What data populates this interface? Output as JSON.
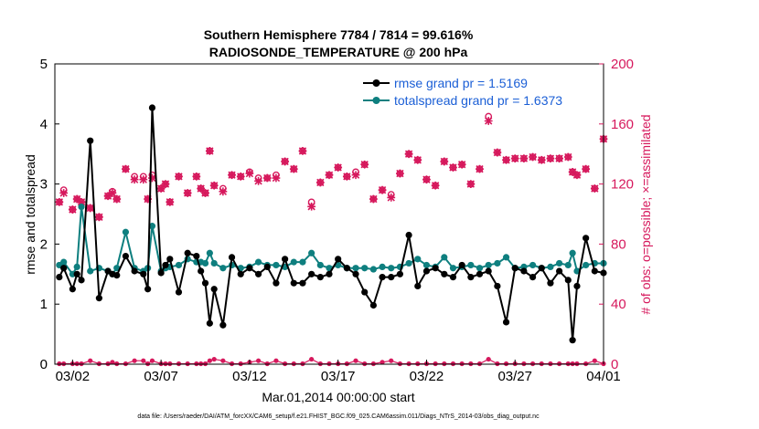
{
  "chart_data": {
    "type": "line",
    "title_line1": "Southern Hemisphere 7784 / 7814 = 99.616%",
    "title_line2": "RADIOSONDE_TEMPERATURE @ 200 hPa",
    "xlabel": "Mar.01,2014 00:00:00 start",
    "ylabel_left": "rmse and totalspread",
    "ylabel_right": "# of obs: o=possible; ×=assimilated",
    "ylim_left": [
      0,
      5
    ],
    "ylim_right": [
      0,
      200
    ],
    "xlim": [
      0,
      31
    ],
    "yticks_left": [
      "0",
      "1",
      "2",
      "3",
      "4",
      "5"
    ],
    "yticks_right": [
      "0",
      "40",
      "80",
      "120",
      "160",
      "200"
    ],
    "xticks": [
      {
        "value": 1,
        "label": "03/02"
      },
      {
        "value": 6,
        "label": "03/07"
      },
      {
        "value": 11,
        "label": "03/12"
      },
      {
        "value": 16,
        "label": "03/17"
      },
      {
        "value": 21,
        "label": "03/22"
      },
      {
        "value": 26,
        "label": "03/27"
      },
      {
        "value": 31,
        "label": "04/01"
      }
    ],
    "legend": {
      "placement": "top-right",
      "entries": [
        "rmse grand pr = 1.5169",
        "totalspread grand pr = 1.6373"
      ]
    },
    "footnote": "data file: /Users/raeder/DAI/ATM_forcXX/CAM6_setup/f.e21.FHIST_BGC.f09_025.CAM6assim.011/Diags_NTrS_2014-03/obs_diag_output.nc",
    "colors": {
      "rmse": "#000000",
      "spread": "#0e7f7f",
      "obs": "#d6185c"
    },
    "series": [
      {
        "name": "rmse",
        "x": [
          0.25,
          0.5,
          1,
          1.25,
          1.5,
          2,
          2.5,
          3,
          3.25,
          3.5,
          4,
          4.5,
          5,
          5.25,
          5.5,
          6,
          6.25,
          6.5,
          7,
          7.5,
          8,
          8.25,
          8.5,
          8.75,
          9,
          9.5,
          10,
          10.5,
          11,
          11.5,
          12,
          12.5,
          13,
          13.5,
          14,
          14.5,
          15,
          15.5,
          16,
          16.5,
          17,
          17.5,
          18,
          18.5,
          19,
          19.5,
          20,
          20.5,
          21,
          21.5,
          22,
          22.5,
          23,
          23.5,
          24,
          24.5,
          25,
          25.5,
          26,
          26.5,
          27,
          27.5,
          28,
          28.5,
          29,
          29.25,
          29.5,
          30,
          30.5,
          31
        ],
        "values": [
          1.45,
          1.6,
          1.25,
          1.5,
          1.4,
          3.72,
          1.1,
          1.55,
          1.5,
          1.48,
          1.8,
          1.55,
          1.5,
          1.25,
          4.27,
          1.52,
          1.65,
          1.75,
          1.2,
          1.85,
          1.8,
          1.55,
          1.35,
          0.68,
          1.25,
          0.65,
          1.78,
          1.5,
          1.6,
          1.5,
          1.62,
          1.35,
          1.75,
          1.35,
          1.35,
          1.5,
          1.45,
          1.5,
          1.75,
          1.6,
          1.5,
          1.2,
          0.98,
          1.45,
          1.45,
          1.5,
          2.15,
          1.3,
          1.55,
          1.6,
          1.5,
          1.45,
          1.65,
          1.45,
          1.5,
          1.55,
          1.3,
          0.7,
          1.6,
          1.55,
          1.45,
          1.6,
          1.35,
          1.55,
          1.4,
          0.4,
          1.3,
          2.1,
          1.55,
          1.52
        ]
      },
      {
        "name": "totalspread",
        "x": [
          0.25,
          0.5,
          1,
          1.25,
          1.5,
          2,
          2.5,
          3,
          3.25,
          3.5,
          4,
          4.5,
          5,
          5.25,
          5.5,
          6,
          6.25,
          6.5,
          7,
          7.5,
          8,
          8.25,
          8.5,
          8.75,
          9,
          9.5,
          10,
          10.5,
          11,
          11.5,
          12,
          12.5,
          13,
          13.5,
          14,
          14.5,
          15,
          15.5,
          16,
          16.5,
          17,
          17.5,
          18,
          18.5,
          19,
          19.5,
          20,
          20.5,
          21,
          21.5,
          22,
          22.5,
          23,
          23.5,
          24,
          24.5,
          25,
          25.5,
          26,
          26.5,
          27,
          27.5,
          28,
          28.5,
          29,
          29.25,
          29.5,
          30,
          30.5,
          31
        ],
        "values": [
          1.65,
          1.7,
          1.5,
          1.62,
          2.62,
          1.55,
          1.6,
          1.55,
          1.5,
          1.6,
          2.2,
          1.6,
          1.55,
          1.6,
          2.3,
          1.55,
          1.6,
          1.62,
          1.65,
          1.75,
          1.7,
          1.7,
          1.68,
          1.85,
          1.68,
          1.6,
          1.65,
          1.6,
          1.62,
          1.7,
          1.65,
          1.65,
          1.62,
          1.7,
          1.7,
          1.85,
          1.65,
          1.6,
          1.65,
          1.6,
          1.6,
          1.6,
          1.58,
          1.62,
          1.6,
          1.62,
          1.68,
          1.75,
          1.65,
          1.62,
          1.78,
          1.6,
          1.62,
          1.65,
          1.6,
          1.65,
          1.68,
          1.78,
          1.6,
          1.62,
          1.65,
          1.6,
          1.62,
          1.68,
          1.65,
          1.85,
          1.55,
          1.65,
          1.68,
          1.68
        ]
      },
      {
        "name": "obs possible",
        "x": [
          0.25,
          0.5,
          1,
          1.25,
          1.5,
          2,
          2.5,
          3,
          3.25,
          3.5,
          4,
          4.5,
          5,
          5.25,
          5.5,
          6,
          6.25,
          6.5,
          7,
          7.5,
          8,
          8.25,
          8.5,
          8.75,
          9,
          9.5,
          10,
          10.5,
          11,
          11.5,
          12,
          12.5,
          13,
          13.5,
          14,
          14.5,
          15,
          15.5,
          16,
          16.5,
          17,
          17.5,
          18,
          18.5,
          19,
          19.5,
          20,
          20.5,
          21,
          21.5,
          22,
          22.5,
          23,
          23.5,
          24,
          24.5,
          25,
          25.5,
          26,
          26.5,
          27,
          27.5,
          28,
          28.5,
          29,
          29.25,
          29.5,
          30,
          30.5,
          31
        ],
        "values": [
          108,
          116,
          103,
          110,
          108,
          104,
          98,
          112,
          115,
          110,
          130,
          125,
          125,
          110,
          126,
          117,
          120,
          108,
          125,
          114,
          125,
          117,
          114,
          142,
          119,
          117,
          126,
          125,
          128,
          124,
          124,
          126,
          135,
          130,
          142,
          108,
          121,
          126,
          131,
          125,
          128,
          133,
          110,
          116,
          113,
          127,
          140,
          136,
          123,
          119,
          135,
          131,
          133,
          120,
          130,
          165,
          141,
          136,
          137,
          137,
          138,
          136,
          137,
          137,
          138,
          128,
          126,
          130,
          117,
          150
        ]
      },
      {
        "name": "obs assimilated",
        "x": [
          0.25,
          0.5,
          1,
          1.25,
          1.5,
          2,
          2.5,
          3,
          3.25,
          3.5,
          4,
          4.5,
          5,
          5.25,
          5.5,
          6,
          6.25,
          6.5,
          7,
          7.5,
          8,
          8.25,
          8.5,
          8.75,
          9,
          9.5,
          10,
          10.5,
          11,
          11.5,
          12,
          12.5,
          13,
          13.5,
          14,
          14.5,
          15,
          15.5,
          16,
          16.5,
          17,
          17.5,
          18,
          18.5,
          19,
          19.5,
          20,
          20.5,
          21,
          21.5,
          22,
          22.5,
          23,
          23.5,
          24,
          24.5,
          25,
          25.5,
          26,
          26.5,
          27,
          27.5,
          28,
          28.5,
          29,
          29.25,
          29.5,
          30,
          30.5,
          31
        ],
        "values": [
          108,
          114,
          103,
          110,
          108,
          104,
          98,
          112,
          114,
          110,
          130,
          123,
          123,
          110,
          124,
          117,
          120,
          108,
          125,
          114,
          125,
          117,
          114,
          142,
          119,
          115,
          126,
          125,
          127,
          122,
          124,
          124,
          135,
          130,
          142,
          105,
          121,
          126,
          131,
          125,
          126,
          133,
          110,
          116,
          111,
          127,
          140,
          136,
          123,
          119,
          135,
          131,
          133,
          120,
          130,
          162,
          141,
          136,
          137,
          137,
          138,
          136,
          137,
          137,
          138,
          128,
          126,
          130,
          117,
          150
        ]
      },
      {
        "name": "obs rejected",
        "x": [
          0.25,
          0.5,
          1,
          1.25,
          1.5,
          2,
          2.5,
          3,
          3.25,
          3.5,
          4,
          4.5,
          5,
          5.25,
          5.5,
          6,
          6.25,
          6.5,
          7,
          7.5,
          8,
          8.25,
          8.5,
          8.75,
          9,
          9.5,
          10,
          10.5,
          11,
          11.5,
          12,
          12.5,
          13,
          13.5,
          14,
          14.5,
          15,
          15.5,
          16,
          16.5,
          17,
          17.5,
          18,
          18.5,
          19,
          19.5,
          20,
          20.5,
          21,
          21.5,
          22,
          22.5,
          23,
          23.5,
          24,
          24.5,
          25,
          25.5,
          26,
          26.5,
          27,
          27.5,
          28,
          28.5,
          29,
          29.25,
          29.5,
          30,
          30.5,
          31
        ],
        "values": [
          0,
          0,
          0,
          0,
          0,
          2,
          0,
          0,
          1,
          0,
          0,
          2,
          2,
          0,
          2,
          0,
          0,
          0,
          0,
          0,
          0,
          0,
          0,
          2,
          3,
          2,
          0,
          0,
          1,
          2,
          0,
          2,
          0,
          0,
          0,
          3,
          0,
          0,
          0,
          0,
          2,
          0,
          0,
          1,
          2,
          0,
          0,
          0,
          0,
          0,
          0,
          0,
          0,
          0,
          0,
          3,
          0,
          0,
          0,
          0,
          0,
          0,
          0,
          0,
          0,
          0,
          0,
          0,
          2,
          0
        ]
      }
    ]
  }
}
